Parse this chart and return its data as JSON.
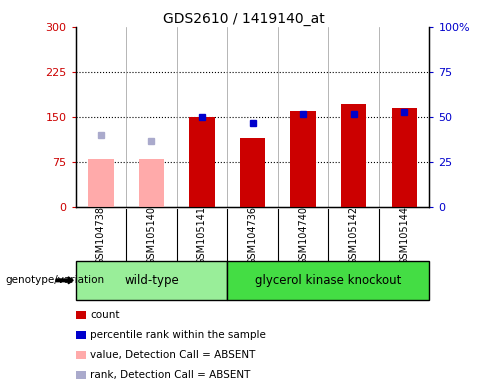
{
  "title": "GDS2610 / 1419140_at",
  "samples": [
    "GSM104738",
    "GSM105140",
    "GSM105141",
    "GSM104736",
    "GSM104740",
    "GSM105142",
    "GSM105144"
  ],
  "wildtype_indices": [
    0,
    1,
    2
  ],
  "knockout_indices": [
    3,
    4,
    5,
    6
  ],
  "wildtype_label": "wild-type",
  "knockout_label": "glycerol kinase knockout",
  "count_values": [
    null,
    null,
    150,
    115,
    160,
    172,
    165
  ],
  "rank_values_pct": [
    null,
    null,
    50,
    47,
    52,
    52,
    53
  ],
  "count_absent": [
    80,
    80,
    null,
    null,
    null,
    null,
    null
  ],
  "rank_absent_pct": [
    40,
    37,
    null,
    null,
    null,
    null,
    null
  ],
  "left_ylim": [
    0,
    300
  ],
  "right_ylim": [
    0,
    100
  ],
  "left_yticks": [
    0,
    75,
    150,
    225,
    300
  ],
  "right_yticks": [
    0,
    25,
    50,
    75,
    100
  ],
  "right_yticklabels": [
    "0",
    "25",
    "50",
    "75",
    "100%"
  ],
  "left_color": "#cc0000",
  "rank_color": "#0000cc",
  "absent_count_color": "#ffaaaa",
  "absent_rank_color": "#aaaacc",
  "wildtype_color": "#99ee99",
  "knockout_color": "#44dd44",
  "bg_color": "#cccccc",
  "legend_items": [
    {
      "label": "count",
      "color": "#cc0000"
    },
    {
      "label": "percentile rank within the sample",
      "color": "#0000cc"
    },
    {
      "label": "value, Detection Call = ABSENT",
      "color": "#ffaaaa"
    },
    {
      "label": "rank, Detection Call = ABSENT",
      "color": "#aaaacc"
    }
  ],
  "genotype_label": "genotype/variation"
}
